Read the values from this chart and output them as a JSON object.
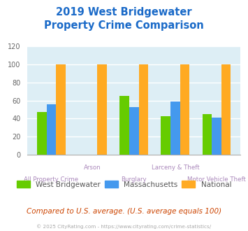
{
  "title": "2019 West Bridgewater\nProperty Crime Comparison",
  "title_color": "#1a6ac8",
  "categories": [
    "All Property Crime",
    "Arson",
    "Burglary",
    "Larceny & Theft",
    "Motor Vehicle Theft"
  ],
  "series": {
    "West Bridgewater": [
      47,
      0,
      65,
      43,
      45
    ],
    "Massachusetts": [
      56,
      0,
      53,
      59,
      41
    ],
    "National": [
      100,
      100,
      100,
      100,
      100
    ]
  },
  "colors": {
    "West Bridgewater": "#66cc00",
    "Massachusetts": "#4499ee",
    "National": "#ffaa22"
  },
  "ylim": [
    0,
    120
  ],
  "yticks": [
    0,
    20,
    40,
    60,
    80,
    100,
    120
  ],
  "background_color": "#ddeef5",
  "grid_color": "#ffffff",
  "footnote": "Compared to U.S. average. (U.S. average equals 100)",
  "footnote_color": "#cc4400",
  "copyright": "© 2025 CityRating.com - https://www.cityrating.com/crime-statistics/",
  "copyright_color": "#aaaaaa",
  "xlabel_color": "#aa88bb",
  "legend_label_color": "#555555"
}
